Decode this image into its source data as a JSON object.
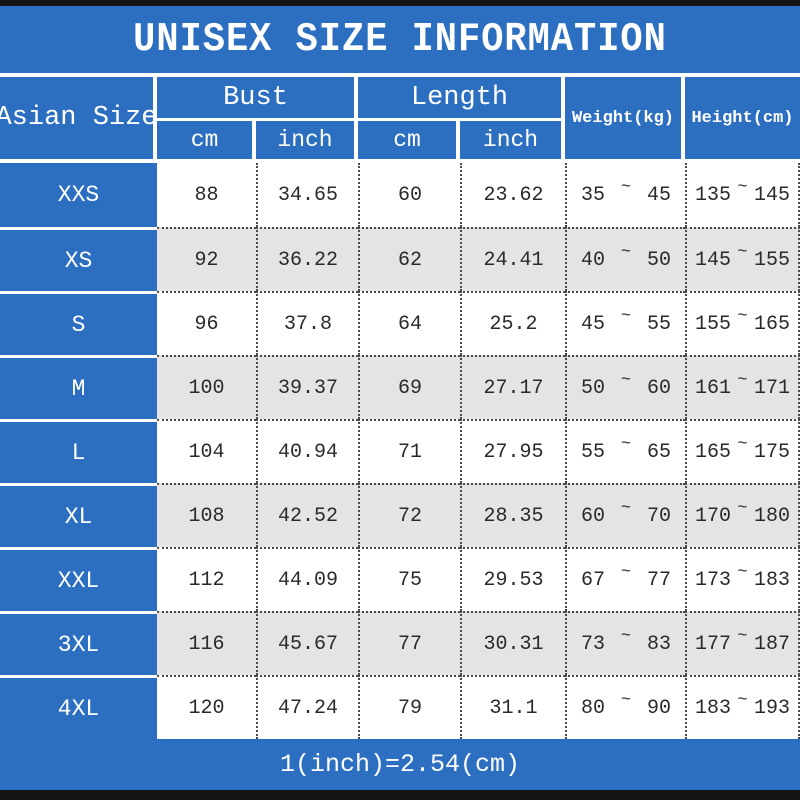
{
  "title": "UNISEX SIZE INFORMATION",
  "footer_note": "1(inch)=2.54(cm)",
  "colors": {
    "accent_blue": "#2c6fc0",
    "alt_row_gray": "#e5e3e4",
    "edge_bar_black": "#141414",
    "text_dark": "#2a2a2a"
  },
  "table": {
    "tilde": "~",
    "header": {
      "asian_size": "Asian Size",
      "bust": "Bust",
      "length": "Length",
      "cm": "cm",
      "inch": "inch",
      "weight": "Weight(kg)",
      "height": "Height(cm)"
    },
    "rows": [
      {
        "size": "XXS",
        "bust_cm": "88",
        "bust_inch": "34.65",
        "length_cm": "60",
        "length_inch": "23.62",
        "weight_min": "35",
        "weight_max": "45",
        "height_min": "135",
        "height_max": "145"
      },
      {
        "size": "XS",
        "bust_cm": "92",
        "bust_inch": "36.22",
        "length_cm": "62",
        "length_inch": "24.41",
        "weight_min": "40",
        "weight_max": "50",
        "height_min": "145",
        "height_max": "155"
      },
      {
        "size": "S",
        "bust_cm": "96",
        "bust_inch": "37.8",
        "length_cm": "64",
        "length_inch": "25.2",
        "weight_min": "45",
        "weight_max": "55",
        "height_min": "155",
        "height_max": "165"
      },
      {
        "size": "M",
        "bust_cm": "100",
        "bust_inch": "39.37",
        "length_cm": "69",
        "length_inch": "27.17",
        "weight_min": "50",
        "weight_max": "60",
        "height_min": "161",
        "height_max": "171"
      },
      {
        "size": "L",
        "bust_cm": "104",
        "bust_inch": "40.94",
        "length_cm": "71",
        "length_inch": "27.95",
        "weight_min": "55",
        "weight_max": "65",
        "height_min": "165",
        "height_max": "175"
      },
      {
        "size": "XL",
        "bust_cm": "108",
        "bust_inch": "42.52",
        "length_cm": "72",
        "length_inch": "28.35",
        "weight_min": "60",
        "weight_max": "70",
        "height_min": "170",
        "height_max": "180"
      },
      {
        "size": "XXL",
        "bust_cm": "112",
        "bust_inch": "44.09",
        "length_cm": "75",
        "length_inch": "29.53",
        "weight_min": "67",
        "weight_max": "77",
        "height_min": "173",
        "height_max": "183"
      },
      {
        "size": "3XL",
        "bust_cm": "116",
        "bust_inch": "45.67",
        "length_cm": "77",
        "length_inch": "30.31",
        "weight_min": "73",
        "weight_max": "83",
        "height_min": "177",
        "height_max": "187"
      },
      {
        "size": "4XL",
        "bust_cm": "120",
        "bust_inch": "47.24",
        "length_cm": "79",
        "length_inch": "31.1",
        "weight_min": "80",
        "weight_max": "90",
        "height_min": "183",
        "height_max": "193"
      }
    ]
  },
  "chart_data": {
    "type": "table",
    "title": "UNISEX SIZE INFORMATION",
    "columns": [
      "Asian Size",
      "Bust cm",
      "Bust inch",
      "Length cm",
      "Length inch",
      "Weight(kg)",
      "Height(cm)"
    ],
    "rows": [
      [
        "XXS",
        88,
        34.65,
        60,
        23.62,
        "35~45",
        "135~145"
      ],
      [
        "XS",
        92,
        36.22,
        62,
        24.41,
        "40~50",
        "145~155"
      ],
      [
        "S",
        96,
        37.8,
        64,
        25.2,
        "45~55",
        "155~165"
      ],
      [
        "M",
        100,
        39.37,
        69,
        27.17,
        "50~60",
        "161~171"
      ],
      [
        "L",
        104,
        40.94,
        71,
        27.95,
        "55~65",
        "165~175"
      ],
      [
        "XL",
        108,
        42.52,
        72,
        28.35,
        "60~70",
        "170~180"
      ],
      [
        "XXL",
        112,
        44.09,
        75,
        29.53,
        "67~77",
        "173~183"
      ],
      [
        "3XL",
        116,
        45.67,
        77,
        30.31,
        "73~83",
        "177~187"
      ],
      [
        "4XL",
        120,
        47.24,
        79,
        31.1,
        "80~90",
        "183~193"
      ]
    ],
    "note": "1(inch)=2.54(cm)"
  }
}
